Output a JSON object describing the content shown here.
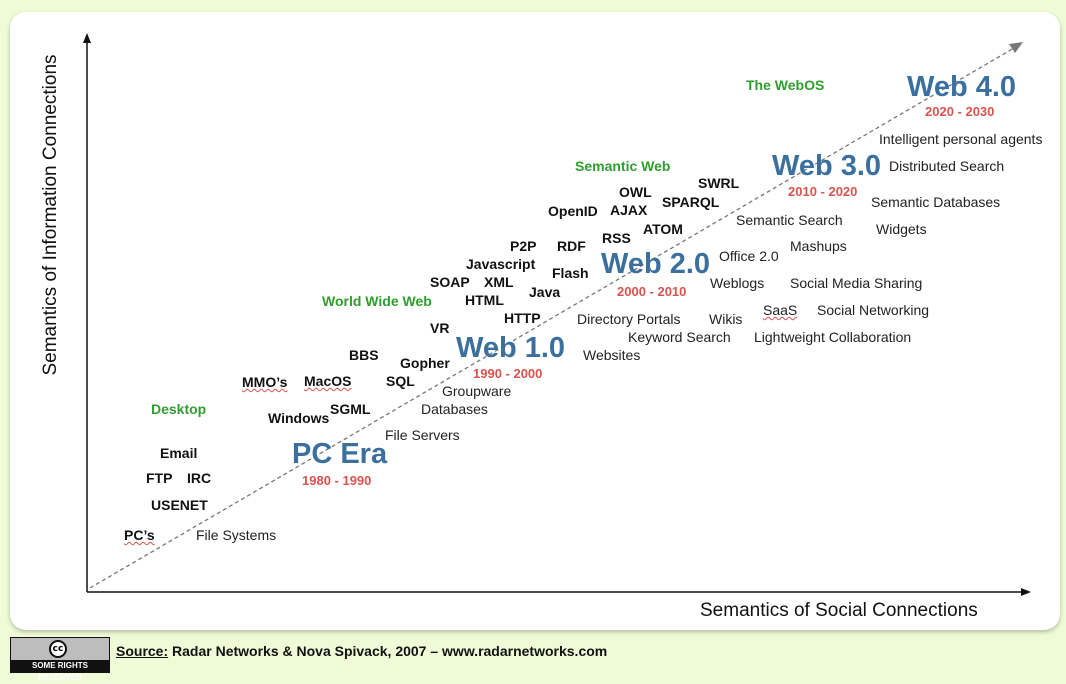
{
  "axes": {
    "y_label": "Semantics of Information Connections",
    "x_label": "Semantics of Social Connections"
  },
  "eras": [
    {
      "name": "PC Era",
      "years": "1980 - 1990"
    },
    {
      "name": "Web 1.0",
      "years": "1990 - 2000"
    },
    {
      "name": "Web 2.0",
      "years": "2000 - 2010"
    },
    {
      "name": "Web 3.0",
      "years": "2010 - 2020"
    },
    {
      "name": "Web 4.0",
      "years": "2020 - 2030"
    }
  ],
  "categories": {
    "desktop": "Desktop",
    "www": "World Wide Web",
    "semantic_web": "Semantic Web",
    "webos": "The WebOS"
  },
  "information_tech": {
    "pcs": "PC’s",
    "usenet": "USENET",
    "ftp": "FTP",
    "irc": "IRC",
    "email": "Email",
    "windows": "Windows",
    "mmos": "MMO’s",
    "macos": "MacOS",
    "sgml": "SGML",
    "sql": "SQL",
    "bbs": "BBS",
    "gopher": "Gopher",
    "vr": "VR",
    "soap": "SOAP",
    "html": "HTML",
    "xml": "XML",
    "javascript": "Javascript",
    "p2p": "P2P",
    "http": "HTTP",
    "java": "Java",
    "flash": "Flash",
    "rdf": "RDF",
    "rss": "RSS",
    "openid": "OpenID",
    "ajax": "AJAX",
    "owl": "OWL",
    "atom": "ATOM",
    "sparql": "SPARQL",
    "swrl": "SWRL"
  },
  "social_tech": {
    "file_systems": "File Systems",
    "file_servers": "File Servers",
    "databases": "Databases",
    "groupware": "Groupware",
    "websites": "Websites",
    "directory_portals": "Directory Portals",
    "keyword_search": "Keyword Search",
    "wikis": "Wikis",
    "lightweight_collaboration": "Lightweight Collaboration",
    "saas": "SaaS",
    "social_networking": "Social Networking",
    "weblogs": "Weblogs",
    "social_media_sharing": "Social Media Sharing",
    "office20": "Office 2.0",
    "mashups": "Mashups",
    "semantic_search": "Semantic Search",
    "widgets": "Widgets",
    "semantic_databases": "Semantic Databases",
    "distributed_search": "Distributed Search",
    "intelligent_agents": "Intelligent personal agents"
  },
  "footer": {
    "license_badge": "SOME RIGHTS RESERVED",
    "license_symbol": "cc",
    "source_label": "Source:",
    "source_text": " Radar Networks & Nova Spivack, 2007 – www.radarnetworks.com"
  },
  "colors": {
    "era": "#3a6f9e",
    "years": "#d9534f",
    "category": "#2e9e2e",
    "background": "#eefbd6"
  }
}
